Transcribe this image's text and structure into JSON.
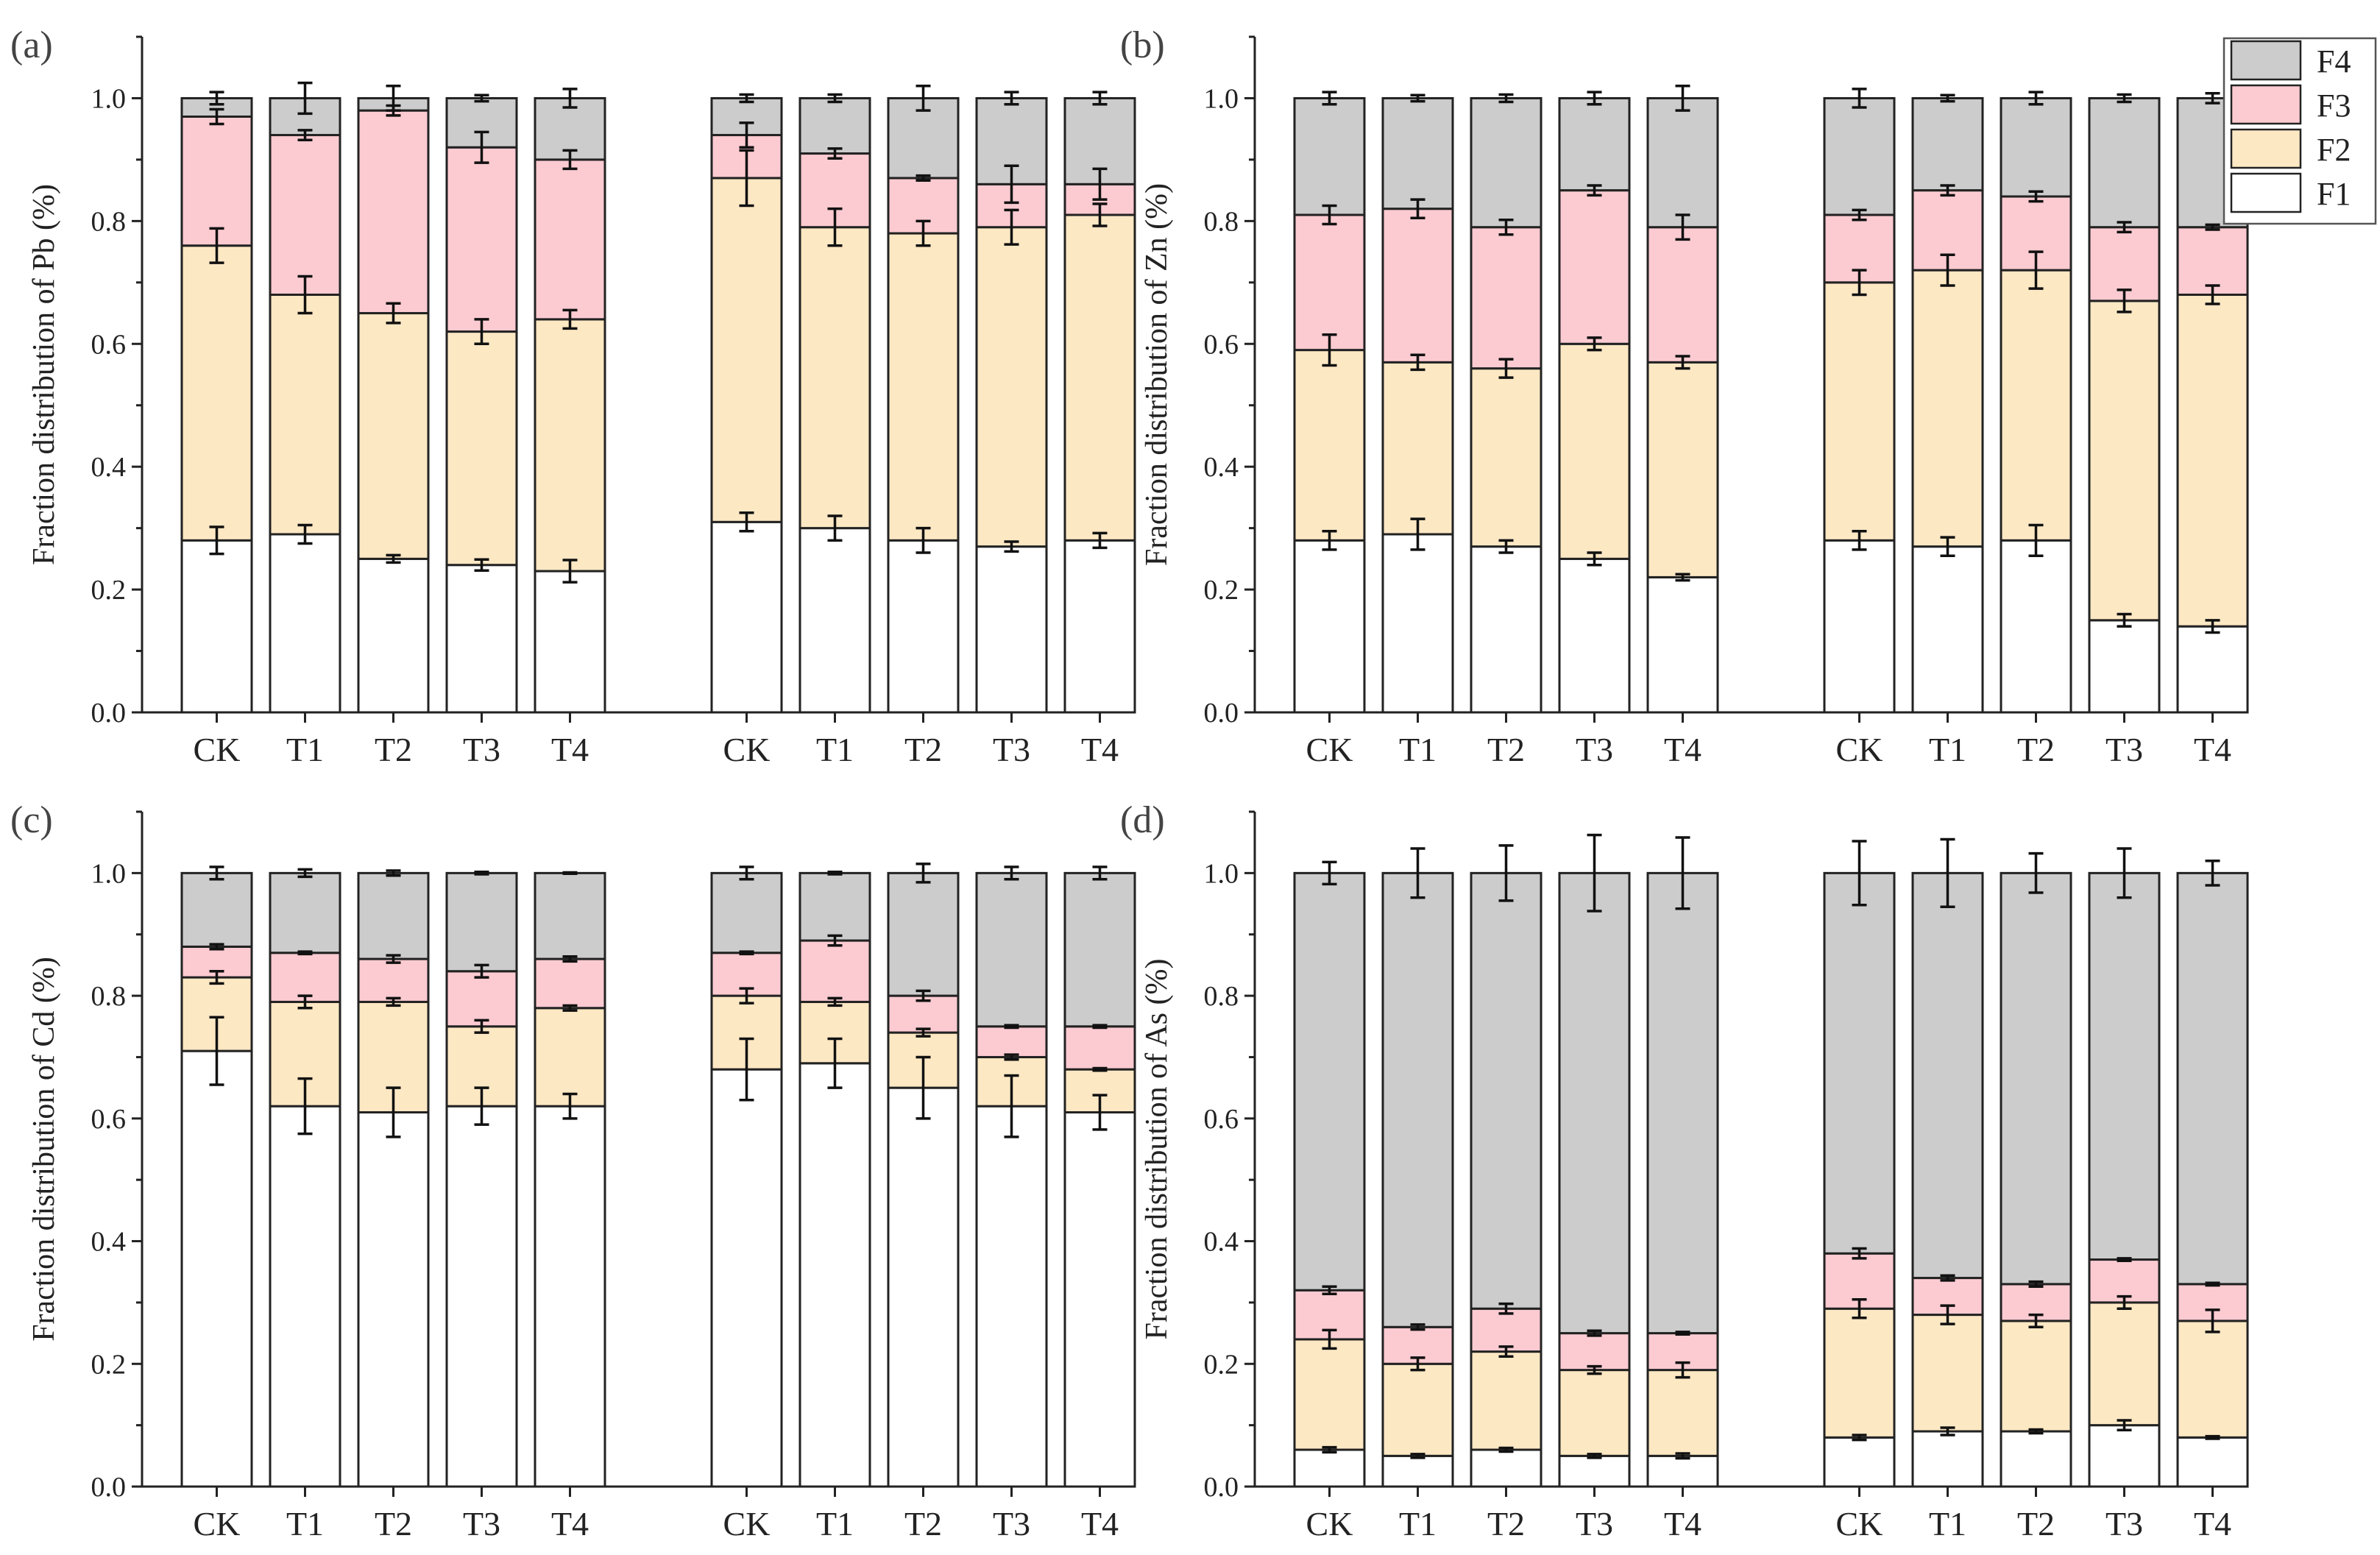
{
  "colors": {
    "F1": "#ffffff",
    "F2": "#fde8c4",
    "F3": "#fccbd1",
    "F4": "#cccccc"
  },
  "legend": {
    "entries": [
      "F4",
      "F3",
      "F2",
      "F1"
    ]
  },
  "chart_data": [
    {
      "type": "bar",
      "stacked": true,
      "panel_label": "(a)",
      "ylabel": "Fraction distribution of Pb (%)",
      "ylim": [
        0,
        1.1
      ],
      "yticks": [
        "0.0",
        "0.2",
        "0.4",
        "0.6",
        "0.8",
        "1.0"
      ],
      "groups": [
        {
          "categories": [
            "CK",
            "T1",
            "T2",
            "T3",
            "T4"
          ],
          "series": [
            {
              "name": "F1",
              "values": [
                0.28,
                0.29,
                0.25,
                0.24,
                0.23
              ],
              "errors": [
                0.022,
                0.015,
                0.006,
                0.009,
                0.018
              ]
            },
            {
              "name": "F2",
              "values": [
                0.48,
                0.39,
                0.4,
                0.38,
                0.41
              ],
              "errors": [
                0.028,
                0.03,
                0.016,
                0.02,
                0.015
              ]
            },
            {
              "name": "F3",
              "values": [
                0.21,
                0.26,
                0.33,
                0.3,
                0.26
              ],
              "errors": [
                0.012,
                0.008,
                0.008,
                0.025,
                0.015
              ]
            },
            {
              "name": "F4",
              "values": [
                0.03,
                0.06,
                0.02,
                0.08,
                0.1
              ],
              "errors": [
                0.01,
                0.025,
                0.02,
                0.005,
                0.015
              ]
            }
          ]
        },
        {
          "categories": [
            "CK",
            "T1",
            "T2",
            "T3",
            "T4"
          ],
          "series": [
            {
              "name": "F1",
              "values": [
                0.31,
                0.3,
                0.28,
                0.27,
                0.28
              ],
              "errors": [
                0.015,
                0.02,
                0.02,
                0.008,
                0.012
              ]
            },
            {
              "name": "F2",
              "values": [
                0.56,
                0.49,
                0.5,
                0.52,
                0.53
              ],
              "errors": [
                0.045,
                0.03,
                0.02,
                0.028,
                0.018
              ]
            },
            {
              "name": "F3",
              "values": [
                0.07,
                0.12,
                0.09,
                0.07,
                0.05
              ],
              "errors": [
                0.02,
                0.008,
                0.004,
                0.03,
                0.025
              ]
            },
            {
              "name": "F4",
              "values": [
                0.06,
                0.09,
                0.13,
                0.14,
                0.14
              ],
              "errors": [
                0.006,
                0.006,
                0.02,
                0.01,
                0.01
              ]
            }
          ]
        }
      ]
    },
    {
      "type": "bar",
      "stacked": true,
      "panel_label": "(b)",
      "ylabel": "Fraction distribution of Zn (%)",
      "ylim": [
        0,
        1.1
      ],
      "yticks": [
        "0.0",
        "0.2",
        "0.4",
        "0.6",
        "0.8",
        "1.0"
      ],
      "groups": [
        {
          "categories": [
            "CK",
            "T1",
            "T2",
            "T3",
            "T4"
          ],
          "series": [
            {
              "name": "F1",
              "values": [
                0.28,
                0.29,
                0.27,
                0.25,
                0.22
              ],
              "errors": [
                0.015,
                0.025,
                0.01,
                0.01,
                0.005
              ]
            },
            {
              "name": "F2",
              "values": [
                0.31,
                0.28,
                0.29,
                0.35,
                0.35
              ],
              "errors": [
                0.025,
                0.012,
                0.015,
                0.01,
                0.01
              ]
            },
            {
              "name": "F3",
              "values": [
                0.22,
                0.25,
                0.23,
                0.25,
                0.22
              ],
              "errors": [
                0.015,
                0.015,
                0.012,
                0.008,
                0.02
              ]
            },
            {
              "name": "F4",
              "values": [
                0.19,
                0.18,
                0.21,
                0.15,
                0.21
              ],
              "errors": [
                0.01,
                0.005,
                0.006,
                0.01,
                0.02
              ]
            }
          ]
        },
        {
          "categories": [
            "CK",
            "T1",
            "T2",
            "T3",
            "T4"
          ],
          "series": [
            {
              "name": "F1",
              "values": [
                0.28,
                0.27,
                0.28,
                0.15,
                0.14
              ],
              "errors": [
                0.015,
                0.015,
                0.025,
                0.01,
                0.01
              ]
            },
            {
              "name": "F2",
              "values": [
                0.42,
                0.45,
                0.44,
                0.52,
                0.54
              ],
              "errors": [
                0.02,
                0.025,
                0.03,
                0.018,
                0.015
              ]
            },
            {
              "name": "F3",
              "values": [
                0.11,
                0.13,
                0.12,
                0.12,
                0.11
              ],
              "errors": [
                0.008,
                0.008,
                0.008,
                0.008,
                0.004
              ]
            },
            {
              "name": "F4",
              "values": [
                0.19,
                0.15,
                0.16,
                0.21,
                0.21
              ],
              "errors": [
                0.015,
                0.005,
                0.01,
                0.006,
                0.008
              ]
            }
          ]
        }
      ]
    },
    {
      "type": "bar",
      "stacked": true,
      "panel_label": "(c)",
      "ylabel": "Fraction distribution of Cd (%)",
      "ylim": [
        0,
        1.1
      ],
      "yticks": [
        "0.0",
        "0.2",
        "0.4",
        "0.6",
        "0.8",
        "1.0"
      ],
      "groups": [
        {
          "categories": [
            "CK",
            "T1",
            "T2",
            "T3",
            "T4"
          ],
          "series": [
            {
              "name": "F1",
              "values": [
                0.71,
                0.62,
                0.61,
                0.62,
                0.62
              ],
              "errors": [
                0.055,
                0.045,
                0.04,
                0.03,
                0.02
              ]
            },
            {
              "name": "F2",
              "values": [
                0.12,
                0.17,
                0.18,
                0.13,
                0.16
              ],
              "errors": [
                0.01,
                0.01,
                0.006,
                0.01,
                0.004
              ]
            },
            {
              "name": "F3",
              "values": [
                0.05,
                0.08,
                0.07,
                0.09,
                0.08
              ],
              "errors": [
                0.004,
                0.002,
                0.006,
                0.01,
                0.004
              ]
            },
            {
              "name": "F4",
              "values": [
                0.12,
                0.13,
                0.14,
                0.16,
                0.14
              ],
              "errors": [
                0.01,
                0.006,
                0.004,
                0.002,
                0.001
              ]
            }
          ]
        },
        {
          "categories": [
            "CK",
            "T1",
            "T2",
            "T3",
            "T4"
          ],
          "series": [
            {
              "name": "F1",
              "values": [
                0.68,
                0.69,
                0.65,
                0.62,
                0.61
              ],
              "errors": [
                0.05,
                0.04,
                0.05,
                0.05,
                0.028
              ]
            },
            {
              "name": "F2",
              "values": [
                0.12,
                0.1,
                0.09,
                0.08,
                0.07
              ],
              "errors": [
                0.012,
                0.006,
                0.006,
                0.004,
                0.002
              ]
            },
            {
              "name": "F3",
              "values": [
                0.07,
                0.1,
                0.06,
                0.05,
                0.07
              ],
              "errors": [
                0.002,
                0.008,
                0.008,
                0.002,
                0.002
              ]
            },
            {
              "name": "F4",
              "values": [
                0.13,
                0.11,
                0.2,
                0.25,
                0.25
              ],
              "errors": [
                0.01,
                0.002,
                0.015,
                0.01,
                0.01
              ]
            }
          ]
        }
      ]
    },
    {
      "type": "bar",
      "stacked": true,
      "panel_label": "(d)",
      "ylabel": "Fraction distribution of As (%)",
      "ylim": [
        0,
        1.1
      ],
      "yticks": [
        "0.0",
        "0.2",
        "0.4",
        "0.6",
        "0.8",
        "1.0"
      ],
      "groups": [
        {
          "categories": [
            "CK",
            "T1",
            "T2",
            "T3",
            "T4"
          ],
          "series": [
            {
              "name": "F1",
              "values": [
                0.06,
                0.05,
                0.06,
                0.05,
                0.05
              ],
              "errors": [
                0.004,
                0.003,
                0.003,
                0.003,
                0.004
              ]
            },
            {
              "name": "F2",
              "values": [
                0.18,
                0.15,
                0.16,
                0.14,
                0.14
              ],
              "errors": [
                0.015,
                0.01,
                0.008,
                0.006,
                0.012
              ]
            },
            {
              "name": "F3",
              "values": [
                0.08,
                0.06,
                0.07,
                0.06,
                0.06
              ],
              "errors": [
                0.006,
                0.004,
                0.008,
                0.004,
                0.002
              ]
            },
            {
              "name": "F4",
              "values": [
                0.68,
                0.74,
                0.71,
                0.75,
                0.75
              ],
              "errors": [
                0.018,
                0.04,
                0.045,
                0.062,
                0.058
              ]
            }
          ]
        },
        {
          "categories": [
            "CK",
            "T1",
            "T2",
            "T3",
            "T4"
          ],
          "series": [
            {
              "name": "F1",
              "values": [
                0.08,
                0.09,
                0.09,
                0.1,
                0.08
              ],
              "errors": [
                0.004,
                0.006,
                0.003,
                0.008,
                0.002
              ]
            },
            {
              "name": "F2",
              "values": [
                0.21,
                0.19,
                0.18,
                0.2,
                0.19
              ],
              "errors": [
                0.015,
                0.015,
                0.01,
                0.01,
                0.018
              ]
            },
            {
              "name": "F3",
              "values": [
                0.09,
                0.06,
                0.06,
                0.07,
                0.06
              ],
              "errors": [
                0.008,
                0.004,
                0.004,
                0.002,
                0.002
              ]
            },
            {
              "name": "F4",
              "values": [
                0.62,
                0.66,
                0.67,
                0.63,
                0.67
              ],
              "errors": [
                0.052,
                0.055,
                0.032,
                0.04,
                0.02
              ]
            }
          ]
        }
      ]
    }
  ]
}
